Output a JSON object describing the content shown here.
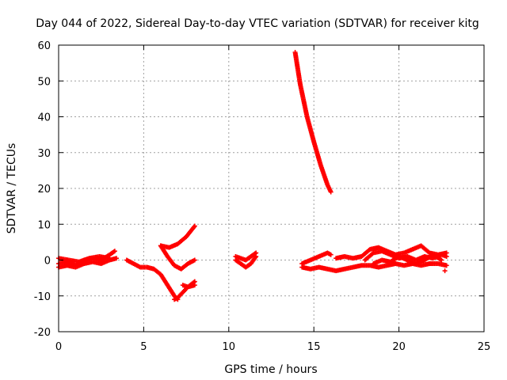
{
  "chart_data": {
    "type": "scatter",
    "title": "Day 044 of 2022, Sidereal Day-to-day VTEC variation (SDTVAR) for receiver kitg",
    "xlabel": "GPS time / hours",
    "ylabel": "SDTVAR / TECUs",
    "xlim": [
      0,
      25
    ],
    "ylim": [
      -20,
      60
    ],
    "xticks": [
      0,
      5,
      10,
      15,
      20,
      25
    ],
    "yticks": [
      -20,
      -10,
      0,
      10,
      20,
      30,
      40,
      50,
      60
    ],
    "grid": true,
    "marker": "+",
    "colors": {
      "series": "#ff0000",
      "grid": "#a0a0a0",
      "axes": "#000000"
    },
    "series": [
      {
        "tracks": [
          {
            "x": [
              0.0,
              0.5,
              1.0,
              1.5,
              2.0,
              2.5,
              3.0,
              3.3
            ],
            "y": [
              -1.0,
              -0.5,
              -1.5,
              0.0,
              0.5,
              0.0,
              1.5,
              2.5
            ]
          },
          {
            "x": [
              0.0,
              0.5,
              1.0,
              1.5,
              2.0,
              2.5,
              3.0,
              3.4
            ],
            "y": [
              -2.0,
              -1.5,
              -2.0,
              -1.0,
              -0.5,
              -1.0,
              0.0,
              0.5
            ]
          },
          {
            "x": [
              0.0,
              0.6,
              1.2,
              1.8,
              2.4,
              3.0
            ],
            "y": [
              0.5,
              0.0,
              -0.5,
              0.5,
              1.0,
              0.5
            ]
          },
          {
            "x": [
              4.0,
              4.4,
              4.8,
              5.2,
              5.6,
              6.0,
              6.4,
              6.8,
              7.0
            ],
            "y": [
              0.0,
              -1.0,
              -2.0,
              -2.0,
              -2.5,
              -4.0,
              -7.0,
              -10.0,
              -11.0
            ]
          },
          {
            "x": [
              6.8,
              7.0,
              7.3,
              7.6,
              8.0
            ],
            "y": [
              -11.0,
              -10.5,
              -9.0,
              -7.5,
              -6.0
            ]
          },
          {
            "x": [
              7.3,
              7.6,
              8.0
            ],
            "y": [
              -7.0,
              -7.5,
              -7.0
            ]
          },
          {
            "x": [
              6.0,
              6.5,
              7.0,
              7.5,
              8.0
            ],
            "y": [
              4.0,
              3.5,
              4.5,
              6.5,
              9.5
            ]
          },
          {
            "x": [
              6.0,
              6.4,
              6.8,
              7.2,
              7.6,
              8.0
            ],
            "y": [
              4.0,
              1.0,
              -1.5,
              -2.5,
              -1.0,
              0.0
            ]
          },
          {
            "x": [
              10.4,
              10.7,
              11.0,
              11.3,
              11.6
            ],
            "y": [
              0.0,
              -1.0,
              -2.0,
              -1.0,
              1.0
            ]
          },
          {
            "x": [
              10.4,
              10.7,
              11.0,
              11.3,
              11.6
            ],
            "y": [
              1.0,
              0.5,
              0.0,
              1.0,
              2.0
            ]
          },
          {
            "x": [
              13.9,
              14.2,
              14.6,
              15.0,
              15.4,
              15.8,
              16.0
            ],
            "y": [
              58.0,
              49.0,
              40.0,
              33.0,
              26.5,
              21.0,
              19.0
            ]
          },
          {
            "x": [
              14.3,
              14.8,
              15.3,
              15.8,
              16.0
            ],
            "y": [
              -1.0,
              0.0,
              1.0,
              2.0,
              1.5
            ]
          },
          {
            "x": [
              14.3,
              14.8,
              15.3,
              15.8,
              16.3,
              16.8,
              17.3,
              17.8,
              18.3,
              18.8,
              19.3,
              19.8,
              20.3,
              20.8,
              21.3,
              21.8,
              22.3,
              22.8
            ],
            "y": [
              -2.0,
              -2.5,
              -2.0,
              -2.5,
              -3.0,
              -2.5,
              -2.0,
              -1.5,
              -1.5,
              -2.0,
              -1.5,
              -1.0,
              -1.5,
              -1.0,
              -1.5,
              -1.0,
              -1.0,
              -1.5
            ]
          },
          {
            "x": [
              16.3,
              16.8,
              17.3,
              17.8,
              18.3,
              18.8,
              19.3,
              19.8,
              20.3,
              20.8,
              21.3,
              21.8,
              22.3,
              22.8
            ],
            "y": [
              0.5,
              1.0,
              0.5,
              1.0,
              3.0,
              3.5,
              2.5,
              1.5,
              2.0,
              3.0,
              4.0,
              2.0,
              1.5,
              2.0
            ]
          },
          {
            "x": [
              18.0,
              18.5,
              19.0,
              19.5,
              20.0,
              20.5,
              21.0,
              21.5,
              22.0,
              22.5,
              22.8
            ],
            "y": [
              0.0,
              2.0,
              2.5,
              1.5,
              0.5,
              1.0,
              0.0,
              1.0,
              0.5,
              1.5,
              1.0
            ]
          },
          {
            "x": [
              18.5,
              19.0,
              19.5,
              20.0,
              20.5,
              21.0,
              21.5,
              22.0,
              22.5
            ],
            "y": [
              -1.0,
              0.0,
              -0.5,
              1.0,
              0.0,
              -1.0,
              0.0,
              1.5,
              0.0
            ]
          },
          {
            "x": [
              22.7
            ],
            "y": [
              -3.0
            ]
          }
        ]
      }
    ]
  }
}
